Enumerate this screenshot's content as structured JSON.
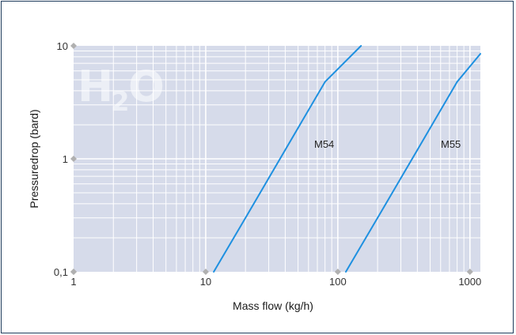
{
  "chart_data": {
    "type": "line",
    "x_scale": "log",
    "y_scale": "log",
    "xlabel": "Mass flow (kg/h)",
    "ylabel": "Pressuredrop (bard)",
    "xlim": [
      1,
      1200
    ],
    "ylim": [
      0.1,
      10
    ],
    "x_ticks": [
      {
        "value": 1,
        "label": "1"
      },
      {
        "value": 10,
        "label": "10"
      },
      {
        "value": 100,
        "label": "100"
      },
      {
        "value": 1000,
        "label": "1000"
      }
    ],
    "y_ticks": [
      {
        "value": 0.1,
        "label": "0,1"
      },
      {
        "value": 1,
        "label": "1"
      },
      {
        "value": 10,
        "label": "10"
      }
    ],
    "grid": true,
    "watermark": {
      "main": "H",
      "sub": "2",
      "tail": "O"
    },
    "series": [
      {
        "name": "M54",
        "color": "#1e90e0",
        "x": [
          11.5,
          20,
          40,
          80,
          150
        ],
        "y": [
          0.1,
          0.3,
          1.2,
          4.8,
          10
        ]
      },
      {
        "name": "M55",
        "color": "#1e90e0",
        "x": [
          115,
          200,
          400,
          800,
          1200
        ],
        "y": [
          0.1,
          0.3,
          1.2,
          4.8,
          8.5
        ]
      }
    ]
  },
  "colors": {
    "plot_background": "#d6dbea",
    "grid_minor": "#ffffff",
    "grid_major": "#ffffff",
    "tick_marker": "#b0b0b0",
    "frame_border": "#1f3c5c",
    "series_line": "#1e90e0"
  }
}
